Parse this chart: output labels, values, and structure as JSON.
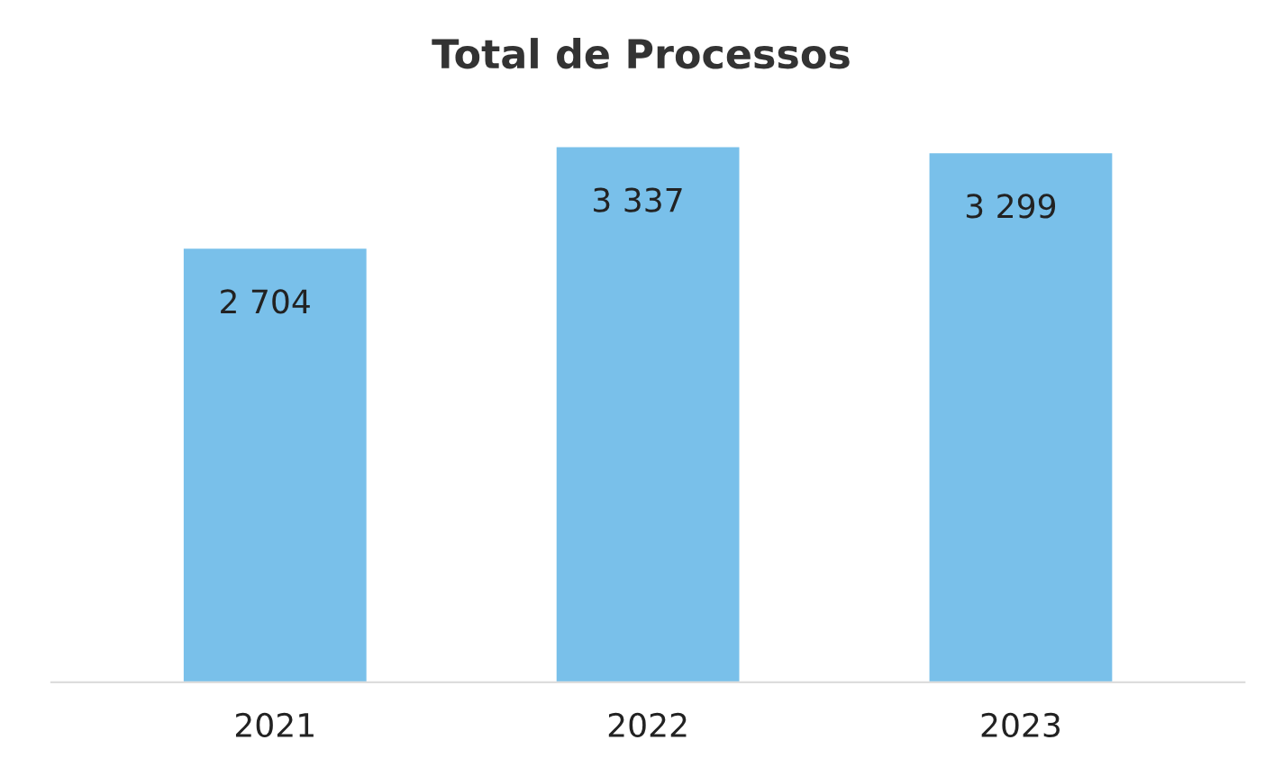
{
  "chart_data": {
    "type": "bar",
    "title": "Total de Processos",
    "categories": [
      "2021",
      "2022",
      "2023"
    ],
    "values": [
      2704,
      3337,
      3299
    ],
    "value_labels": [
      "2 704",
      "3 337",
      "3 299"
    ],
    "color": "#79c0ea",
    "grid": false,
    "legend": false
  }
}
